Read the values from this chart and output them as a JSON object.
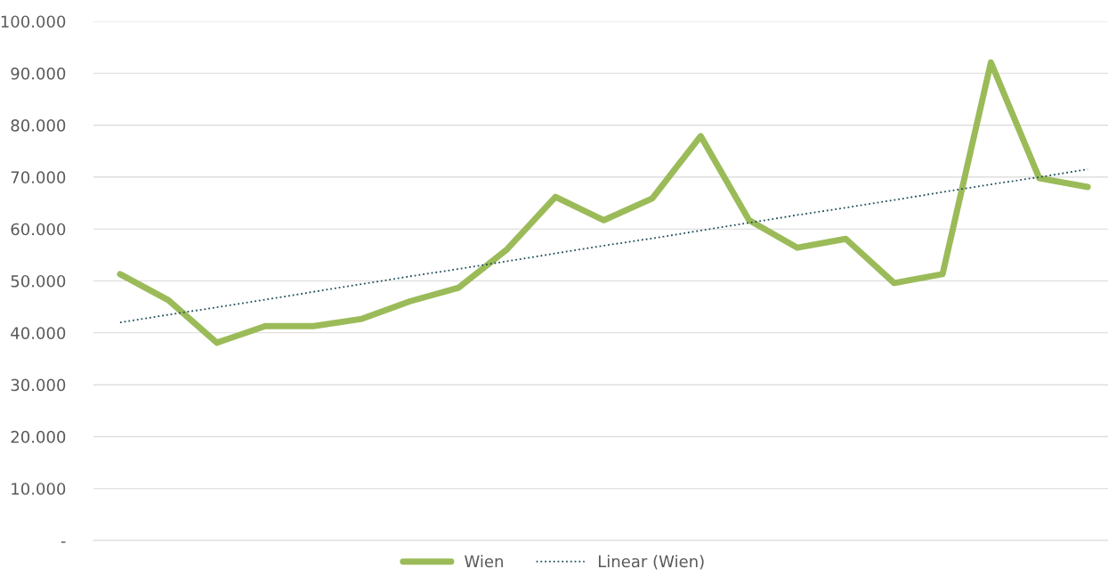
{
  "chart_data": {
    "type": "line",
    "categories": [
      null,
      null,
      null,
      null,
      null,
      null,
      null,
      null,
      null,
      null,
      null,
      null,
      null,
      null,
      null,
      null,
      null,
      null,
      null,
      null,
      null
    ],
    "series": [
      {
        "name": "Wien",
        "color": "#9bbb59",
        "line_style": "solid",
        "values": [
          51300,
          46300,
          38100,
          41300,
          41300,
          42700,
          46100,
          48700,
          56100,
          66200,
          61700,
          65900,
          77900,
          61700,
          56400,
          58100,
          49600,
          51300,
          92100,
          69800,
          68100
        ]
      },
      {
        "name": "Linear (Wien)",
        "color": "#1f4e5a",
        "line_style": "dotted",
        "values": [
          42000,
          43500,
          44900,
          46400,
          47900,
          49400,
          50900,
          52300,
          53800,
          55300,
          56800,
          58200,
          59700,
          61200,
          62700,
          64100,
          65600,
          67100,
          68600,
          70000,
          71500
        ]
      }
    ],
    "ylim": [
      0,
      100000
    ],
    "yticks": [
      {
        "value": 0,
        "label": "-"
      },
      {
        "value": 10000,
        "label": "10.000"
      },
      {
        "value": 20000,
        "label": "20.000"
      },
      {
        "value": 30000,
        "label": "30.000"
      },
      {
        "value": 40000,
        "label": "40.000"
      },
      {
        "value": 50000,
        "label": "50.000"
      },
      {
        "value": 60000,
        "label": "60.000"
      },
      {
        "value": 70000,
        "label": "70.000"
      },
      {
        "value": 80000,
        "label": "80.000"
      },
      {
        "value": 90000,
        "label": "90.000"
      },
      {
        "value": 100000,
        "label": "100.000"
      }
    ],
    "grid": "y",
    "legend": "bottom",
    "tick_labels": "y",
    "marker": "none"
  }
}
